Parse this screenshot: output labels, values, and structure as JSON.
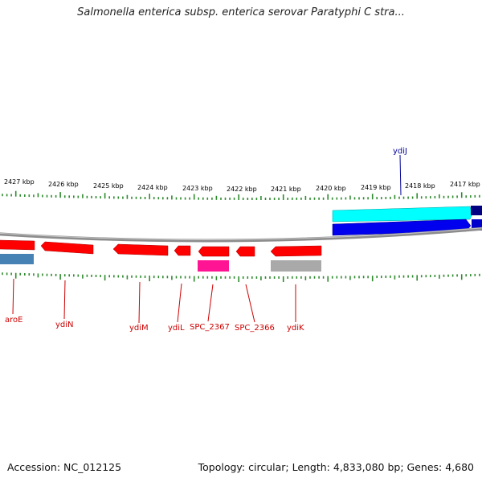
{
  "title": "Salmonella enterica subsp. enterica serovar Paratyphi C stra...",
  "footer": {
    "accession": "Accession: NC_012125",
    "summary": "Topology: circular; Length: 4,833,080 bp; Genes: 4,680"
  },
  "colors": {
    "backbone": "#8c8c8c",
    "tick": "#2e8b2e",
    "gene_forward_strand": "#ff0000",
    "label_lower": "#cc0000",
    "label_upper": "#000099",
    "cyan_track": "#00ffff",
    "blue_track": "#0000ff",
    "navy_track": "#000080",
    "steelblue_track": "#4682b4",
    "pink_track": "#ff1493",
    "gray_track": "#a9a9a9"
  },
  "kbp_labels": [
    "2427 kbp",
    "2426 kbp",
    "2425 kbp",
    "2424 kbp",
    "2423 kbp",
    "2422 kbp",
    "2421 kbp",
    "2420 kbp",
    "2419 kbp",
    "2418 kbp",
    "2417 kbp"
  ],
  "gene_labels_lower": [
    "aroE",
    "ydiN",
    "ydiM",
    "ydiL",
    "SPC_2367",
    "SPC_2366",
    "ydiK"
  ],
  "gene_labels_upper": [
    "ydiJ"
  ]
}
